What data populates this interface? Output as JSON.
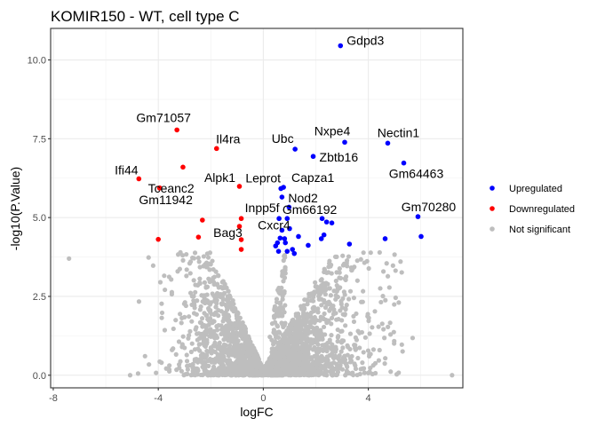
{
  "chart_data": {
    "type": "scatter",
    "subtype": "volcano",
    "title": "KOMIR150 - WT, cell type C",
    "xlabel": "logFC",
    "ylabel": "-log10(P.Value)",
    "xlim": [
      -8.1,
      7.6
    ],
    "ylim": [
      -0.4,
      11.0
    ],
    "xticks": [
      -8,
      -4,
      0,
      4
    ],
    "xtick_labels": [
      "-8",
      "-4",
      "0",
      "4"
    ],
    "yticks": [
      0,
      2.5,
      5,
      7.5,
      10
    ],
    "ytick_labels": [
      "0.0",
      "2.5",
      "5.0",
      "7.5",
      "10.0"
    ],
    "grid": true,
    "legend": {
      "position": "right",
      "entries": [
        {
          "label": "Upregulated",
          "color": "#0000ff"
        },
        {
          "label": "Downregulated",
          "color": "#ff0000"
        },
        {
          "label": "Not significant",
          "color": "#bebebe"
        }
      ]
    },
    "series": [
      {
        "name": "Upregulated",
        "color": "#0000ff",
        "points": [
          {
            "x": 2.94,
            "y": 10.45,
            "label": "Gdpd3"
          },
          {
            "x": 1.21,
            "y": 7.17,
            "label": "Ubc"
          },
          {
            "x": 3.1,
            "y": 7.39,
            "label": "Nxpe4"
          },
          {
            "x": 1.9,
            "y": 6.94,
            "label": "Zbtb16"
          },
          {
            "x": 4.74,
            "y": 7.36,
            "label": "Nectin1"
          },
          {
            "x": 5.35,
            "y": 6.73,
            "label": "Gm64463"
          },
          {
            "x": 5.89,
            "y": 5.03,
            "label": "Gm70280"
          },
          {
            "x": 0.67,
            "y": 5.92,
            "label": "Leprot"
          },
          {
            "x": 0.77,
            "y": 5.96,
            "label": "Capza1"
          },
          {
            "x": 0.71,
            "y": 5.65,
            "label": "Nod2"
          },
          {
            "x": 0.98,
            "y": 5.33,
            "label": ""
          },
          {
            "x": 0.6,
            "y": 4.97,
            "label": "Inpp5f"
          },
          {
            "x": 0.91,
            "y": 4.97,
            "label": ""
          },
          {
            "x": 0.71,
            "y": 4.6,
            "label": "Cxcr4"
          },
          {
            "x": 1.0,
            "y": 4.65,
            "label": ""
          },
          {
            "x": 2.24,
            "y": 4.97,
            "label": "Gm66192"
          },
          {
            "x": 2.41,
            "y": 4.86,
            "label": ""
          },
          {
            "x": 2.61,
            "y": 4.83,
            "label": ""
          },
          {
            "x": 2.31,
            "y": 4.45,
            "label": ""
          },
          {
            "x": 2.21,
            "y": 4.33,
            "label": ""
          },
          {
            "x": 1.71,
            "y": 4.12,
            "label": ""
          },
          {
            "x": 3.28,
            "y": 4.16,
            "label": ""
          },
          {
            "x": 4.64,
            "y": 4.33,
            "label": ""
          },
          {
            "x": 6.01,
            "y": 4.4,
            "label": ""
          },
          {
            "x": 1.34,
            "y": 4.4,
            "label": ""
          },
          {
            "x": 0.54,
            "y": 4.2,
            "label": ""
          },
          {
            "x": 0.47,
            "y": 4.1,
            "label": ""
          },
          {
            "x": 0.58,
            "y": 3.93,
            "label": ""
          },
          {
            "x": 0.81,
            "y": 4.33,
            "label": ""
          },
          {
            "x": 1.11,
            "y": 3.99,
            "label": ""
          },
          {
            "x": 1.18,
            "y": 3.86,
            "label": ""
          },
          {
            "x": 0.84,
            "y": 4.2,
            "label": ""
          },
          {
            "x": 0.64,
            "y": 4.35,
            "label": ""
          },
          {
            "x": 0.91,
            "y": 3.93,
            "label": ""
          }
        ]
      },
      {
        "name": "Downregulated",
        "color": "#ff0000",
        "points": [
          {
            "x": -3.29,
            "y": 7.78,
            "label": "Gm71057"
          },
          {
            "x": -1.78,
            "y": 7.19,
            "label": "Il4ra"
          },
          {
            "x": -3.06,
            "y": 6.6,
            "label": ""
          },
          {
            "x": -4.74,
            "y": 6.23,
            "label": "Ifi44"
          },
          {
            "x": -3.95,
            "y": 5.94,
            "label": "Tceanc2"
          },
          {
            "x": -3.95,
            "y": 5.94,
            "label": "Gm11942"
          },
          {
            "x": -0.91,
            "y": 5.99,
            "label": "Alpk1"
          },
          {
            "x": -2.32,
            "y": 4.92,
            "label": ""
          },
          {
            "x": -2.47,
            "y": 4.38,
            "label": ""
          },
          {
            "x": -4.0,
            "y": 4.31,
            "label": ""
          },
          {
            "x": -0.84,
            "y": 4.97,
            "label": ""
          },
          {
            "x": -0.91,
            "y": 4.72,
            "label": "Bag3"
          },
          {
            "x": -0.84,
            "y": 4.3,
            "label": ""
          },
          {
            "x": -0.84,
            "y": 3.99,
            "label": ""
          }
        ]
      },
      {
        "name": "Not significant",
        "color": "#bebebe",
        "description": "dense V-shaped cloud of thousands of non-significant genes, logFC roughly -7.4 to 6.8, -log10(P) 0 to ~4",
        "outliers": [
          {
            "x": -7.4,
            "y": 3.7
          }
        ]
      }
    ]
  }
}
